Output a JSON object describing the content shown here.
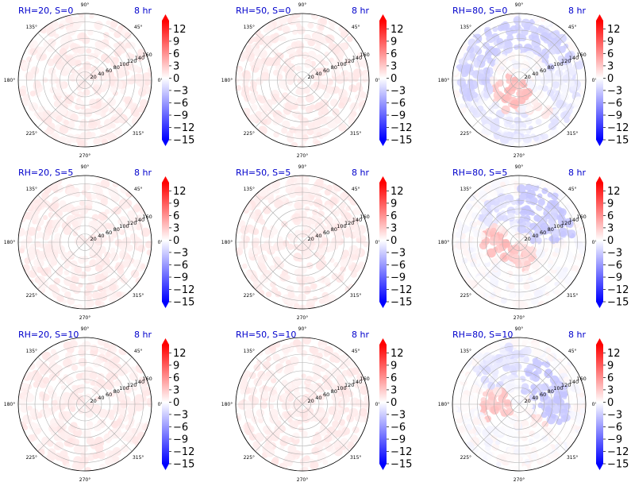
{
  "colors": {
    "low": "#0000ff",
    "mid": "#ffffff",
    "high": "#ff0000",
    "title": "#0000cc",
    "grid": "#b0b0b0"
  },
  "chart_data": {
    "type": "heatmap",
    "projection": "polar",
    "grid": true,
    "layout": "3x3",
    "angle_ticks": [
      "0°",
      "45°",
      "90°",
      "135°",
      "180°",
      "225°",
      "270°",
      "315°"
    ],
    "radial_ticks": [
      "20",
      "40",
      "60",
      "80",
      "100",
      "120",
      "140",
      "160"
    ],
    "rlim": [
      0,
      160
    ],
    "colorbar": {
      "ticks": [
        "12",
        "9",
        "6",
        "3",
        "0",
        "−3",
        "−6",
        "−9",
        "−12",
        "−15"
      ],
      "range": [
        -15,
        14
      ],
      "colormap": "bwr",
      "extend": "both"
    },
    "panels": [
      {
        "title": "RH=20, S=0",
        "time_label": "8 hr",
        "rh": 20,
        "s": 0,
        "value_range": [
          0,
          1.5
        ],
        "pattern": "uniform faint positive"
      },
      {
        "title": "RH=50, S=0",
        "time_label": "8 hr",
        "rh": 50,
        "s": 0,
        "value_range": [
          0,
          1.5
        ],
        "pattern": "uniform faint positive"
      },
      {
        "title": "RH=80, S=0",
        "time_label": "8 hr",
        "rh": 80,
        "s": 0,
        "value_range": [
          -3,
          4
        ],
        "pattern": "negative ring at r≈80–140, positive patches near center-lower-left"
      },
      {
        "title": "RH=20, S=5",
        "time_label": "8 hr",
        "rh": 20,
        "s": 5,
        "value_range": [
          0,
          1.5
        ],
        "pattern": "uniform faint positive"
      },
      {
        "title": "RH=50, S=5",
        "time_label": "8 hr",
        "rh": 50,
        "s": 5,
        "value_range": [
          0,
          1.5
        ],
        "pattern": "uniform faint positive"
      },
      {
        "title": "RH=80, S=5",
        "time_label": "8 hr",
        "rh": 80,
        "s": 5,
        "value_range": [
          -3.5,
          4
        ],
        "pattern": "negative upper-right, positive left/center"
      },
      {
        "title": "RH=20, S=10",
        "time_label": "8 hr",
        "rh": 20,
        "s": 10,
        "value_range": [
          0,
          1.5
        ],
        "pattern": "uniform faint positive"
      },
      {
        "title": "RH=50, S=10",
        "time_label": "8 hr",
        "rh": 50,
        "s": 10,
        "value_range": [
          0,
          1.5
        ],
        "pattern": "uniform faint positive"
      },
      {
        "title": "RH=80, S=10",
        "time_label": "8 hr",
        "rh": 80,
        "s": 10,
        "value_range": [
          -3.5,
          3.5
        ],
        "pattern": "negative right and upper, positive left of center"
      }
    ]
  }
}
